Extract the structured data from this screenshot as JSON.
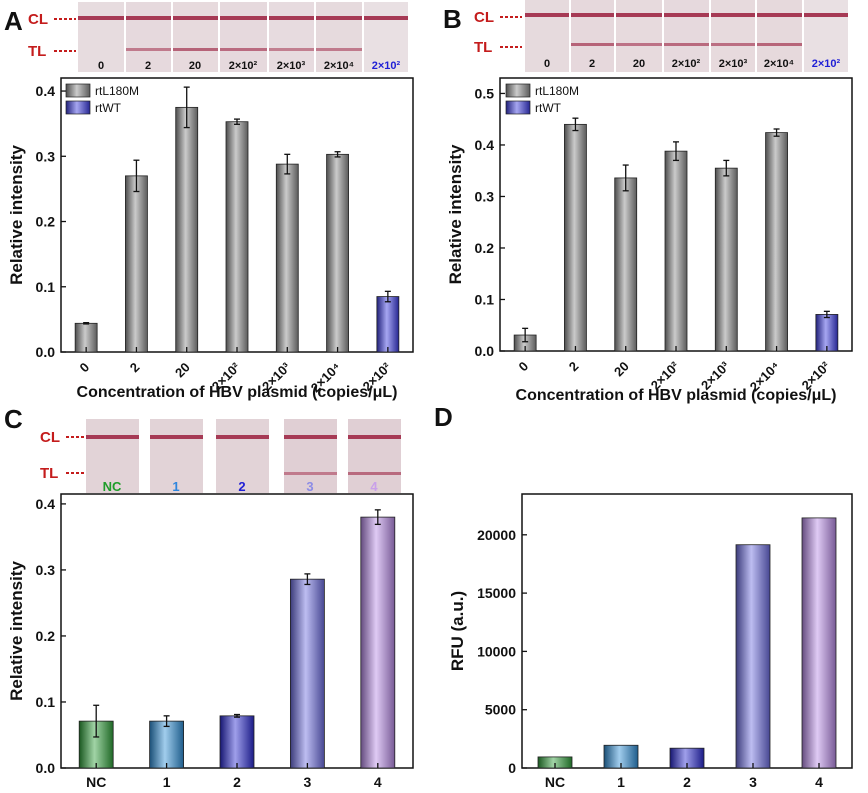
{
  "colors": {
    "strip_red": "#c41c1c",
    "rtWT_lane_label": "#1f1fd6",
    "nc_label": "#1f9d2a",
    "lane1_label": "#2e86de",
    "lane2_label": "#1f1fd6",
    "lane3_label": "#8c8ce6",
    "lane4_label": "#c9a0ea"
  },
  "panels": [
    {
      "letter": "A",
      "cl_label": "CL",
      "tl_label": "TL",
      "strip_labels": [
        "0",
        "2",
        "20",
        "2×10²",
        "2×10³",
        "2×10⁴",
        "2×10²"
      ]
    },
    {
      "letter": "B",
      "cl_label": "CL",
      "tl_label": "TL",
      "strip_labels": [
        "0",
        "2",
        "20",
        "2×10²",
        "2×10³",
        "2×10⁴",
        "2×10²"
      ]
    },
    {
      "letter": "C",
      "cl_label": "CL",
      "tl_label": "TL",
      "strip_labels": [
        "NC",
        "1",
        "2",
        "3",
        "4"
      ]
    },
    {
      "letter": "D"
    }
  ],
  "chart_data": [
    {
      "type": "bar",
      "panel": "A",
      "xlabel": "Concentration of HBV plasmid (copies/μL)",
      "ylabel": "Relative intensity",
      "ylim": [
        0,
        0.42
      ],
      "yticks": [
        "0.0",
        "0.1",
        "0.2",
        "0.3",
        "0.4"
      ],
      "grid": false,
      "legend": "top-left",
      "categories": [
        "0",
        "2",
        "20",
        "2×10²",
        "2×10³",
        "2×10⁴",
        "2×10²"
      ],
      "values": [
        0.044,
        0.27,
        0.375,
        0.353,
        0.288,
        0.303,
        0.085
      ],
      "errors": [
        0.001,
        0.024,
        0.031,
        0.004,
        0.015,
        0.004,
        0.008
      ],
      "series_of_bar": [
        "rtL180M",
        "rtL180M",
        "rtL180M",
        "rtL180M",
        "rtL180M",
        "rtL180M",
        "rtWT"
      ],
      "series": [
        {
          "name": "rtL180M",
          "color": "#8c8c8c"
        },
        {
          "name": "rtWT",
          "color": "#3a3ae0"
        }
      ]
    },
    {
      "type": "bar",
      "panel": "B",
      "xlabel": "Concentration of HBV plasmid (copies/μL)",
      "ylabel": "Relative intensity",
      "ylim": [
        0,
        0.53
      ],
      "yticks": [
        "0.0",
        "0.1",
        "0.2",
        "0.3",
        "0.4",
        "0.5"
      ],
      "grid": false,
      "legend": "top-left",
      "categories": [
        "0",
        "2",
        "20",
        "2×10²",
        "2×10³",
        "2×10⁴",
        "2×10²"
      ],
      "values": [
        0.031,
        0.44,
        0.336,
        0.388,
        0.355,
        0.424,
        0.071
      ],
      "errors": [
        0.013,
        0.012,
        0.025,
        0.018,
        0.015,
        0.007,
        0.006
      ],
      "series_of_bar": [
        "rtL180M",
        "rtL180M",
        "rtL180M",
        "rtL180M",
        "rtL180M",
        "rtL180M",
        "rtWT"
      ],
      "series": [
        {
          "name": "rtL180M",
          "color": "#8c8c8c"
        },
        {
          "name": "rtWT",
          "color": "#3a3ae0"
        }
      ]
    },
    {
      "type": "bar",
      "panel": "C",
      "xlabel": "",
      "ylabel": "Relative intensity",
      "ylim": [
        0,
        0.415
      ],
      "yticks": [
        "0.0",
        "0.1",
        "0.2",
        "0.3",
        "0.4"
      ],
      "grid": false,
      "categories": [
        "NC",
        "1",
        "2",
        "3",
        "4"
      ],
      "values": [
        0.071,
        0.071,
        0.079,
        0.286,
        0.38
      ],
      "errors": [
        0.024,
        0.008,
        0.002,
        0.008,
        0.011
      ],
      "bar_colors": [
        "#2fa03a",
        "#2f8fd8",
        "#2a2ad0",
        "#6d6de0",
        "#b88ae6"
      ]
    },
    {
      "type": "bar",
      "panel": "D",
      "xlabel": "",
      "ylabel": "RFU (a.u.)",
      "ylim": [
        0,
        23500
      ],
      "yticks": [
        "0",
        "5000",
        "10000",
        "15000",
        "20000"
      ],
      "grid": false,
      "categories": [
        "NC",
        "1",
        "2",
        "3",
        "4"
      ],
      "values": [
        950,
        1950,
        1700,
        19150,
        21450
      ],
      "bar_colors": [
        "#2fa03a",
        "#2f8fd8",
        "#2a2ad0",
        "#6d6de0",
        "#b88ae6"
      ]
    }
  ]
}
